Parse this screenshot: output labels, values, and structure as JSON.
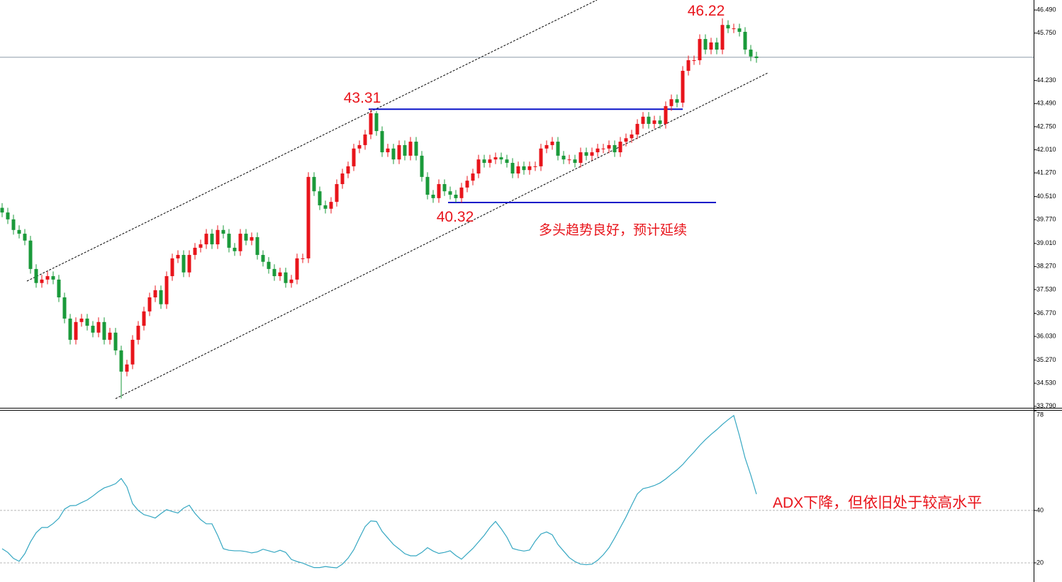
{
  "chart_data": [
    {
      "type": "candlestick",
      "up_color": "#e8141b",
      "down_color": "#1a9a3a",
      "level_color": "#0a14c8",
      "last_price_color": "#8c9aa6",
      "ylim": [
        33.74,
        46.81
      ],
      "yticks": [
        {
          "value": 46.49,
          "label": "46.490"
        },
        {
          "value": 45.75,
          "label": "45.750"
        },
        {
          "value": 44.23,
          "label": "44.230"
        },
        {
          "value": 43.49,
          "label": "43.490"
        },
        {
          "value": 42.75,
          "label": "42.750"
        },
        {
          "value": 42.01,
          "label": "42.010"
        },
        {
          "value": 41.27,
          "label": "41.270"
        },
        {
          "value": 40.51,
          "label": "40.510"
        },
        {
          "value": 39.77,
          "label": "39.770"
        },
        {
          "value": 39.01,
          "label": "39.010"
        },
        {
          "value": 38.27,
          "label": "38.270"
        },
        {
          "value": 37.53,
          "label": "37.530"
        },
        {
          "value": 36.77,
          "label": "36.770"
        },
        {
          "value": 36.03,
          "label": "36.030"
        },
        {
          "value": 35.27,
          "label": "35.270"
        },
        {
          "value": 34.53,
          "label": "34.530"
        },
        {
          "value": 33.79,
          "label": "33.790"
        }
      ],
      "last_price": 44.974,
      "open": [
        40.15,
        40.0,
        39.78,
        39.44,
        39.32,
        39.1,
        38.19,
        37.74,
        37.85,
        37.96,
        37.85,
        37.28,
        36.6,
        35.92,
        36.49,
        36.6,
        36.37,
        36.15,
        36.49,
        35.92,
        36.15,
        35.58,
        34.9,
        35.13,
        35.92,
        36.37,
        36.83,
        37.28,
        37.51,
        37.06,
        37.96,
        38.53,
        38.64,
        38.08,
        38.64,
        38.87,
        38.98,
        39.32,
        38.98,
        39.44,
        39.32,
        38.87,
        38.76,
        39.32,
        39.1,
        39.21,
        38.64,
        38.42,
        38.19,
        37.96,
        38.08,
        37.74,
        37.85,
        38.53,
        38.53,
        41.14,
        40.68,
        40.23,
        40.12,
        40.34,
        40.91,
        41.25,
        41.48,
        42.05,
        42.16,
        42.5,
        43.18,
        42.61,
        41.93,
        42.05,
        41.7,
        42.16,
        41.82,
        42.27,
        41.82,
        41.14,
        40.57,
        40.46,
        40.91,
        40.68,
        40.57,
        40.46,
        40.8,
        41.02,
        41.25,
        41.7,
        41.59,
        41.7,
        41.77,
        41.7,
        41.59,
        41.25,
        41.48,
        41.36,
        41.48,
        41.48,
        42.05,
        42.16,
        42.27,
        41.82,
        41.7,
        41.7,
        41.59,
        41.93,
        41.82,
        41.93,
        42.05,
        42.05,
        42.16,
        41.93,
        42.27,
        42.38,
        42.5,
        42.84,
        43.07,
        42.84,
        42.95,
        42.84,
        43.41,
        43.63,
        43.52,
        44.54,
        44.88,
        44.88,
        45.56,
        45.22,
        45.45,
        45.22,
        46.01,
        45.9,
        45.9,
        45.79,
        45.22,
        45.0
      ],
      "high": [
        40.3,
        40.15,
        39.93,
        39.59,
        39.47,
        39.25,
        38.34,
        38.0,
        38.11,
        38.11,
        38.0,
        37.43,
        36.75,
        36.64,
        36.75,
        36.75,
        36.52,
        36.64,
        36.64,
        36.3,
        36.3,
        35.73,
        35.28,
        36.07,
        36.52,
        36.98,
        37.43,
        37.66,
        37.66,
        38.11,
        38.68,
        38.79,
        38.79,
        38.79,
        39.02,
        39.13,
        39.47,
        39.47,
        39.59,
        39.59,
        39.47,
        39.02,
        39.47,
        39.47,
        39.36,
        39.36,
        38.79,
        38.57,
        38.34,
        38.23,
        38.23,
        38.0,
        38.68,
        38.68,
        41.29,
        41.29,
        40.83,
        40.38,
        40.49,
        41.06,
        41.4,
        41.63,
        42.2,
        42.31,
        42.65,
        43.31,
        43.25,
        42.76,
        42.2,
        42.2,
        42.31,
        42.31,
        42.42,
        42.42,
        41.97,
        41.29,
        40.72,
        41.06,
        41.06,
        40.83,
        40.72,
        40.95,
        41.17,
        41.4,
        41.85,
        41.85,
        41.85,
        41.92,
        41.92,
        41.85,
        41.74,
        41.63,
        41.63,
        41.63,
        41.63,
        42.2,
        42.31,
        42.42,
        42.42,
        41.97,
        41.85,
        41.85,
        42.08,
        42.08,
        42.08,
        42.2,
        42.2,
        42.31,
        42.31,
        42.42,
        42.53,
        42.65,
        42.99,
        43.22,
        43.22,
        43.1,
        43.1,
        43.56,
        43.78,
        43.78,
        44.69,
        45.03,
        45.03,
        45.71,
        45.71,
        45.6,
        45.6,
        46.22,
        46.16,
        46.05,
        46.05,
        45.94,
        45.37,
        45.15
      ],
      "low": [
        39.85,
        39.63,
        39.29,
        39.17,
        38.95,
        38.04,
        37.59,
        37.59,
        37.7,
        37.7,
        37.13,
        36.45,
        35.77,
        35.77,
        36.34,
        36.22,
        36.0,
        36.0,
        35.77,
        35.77,
        35.43,
        34.04,
        34.75,
        34.98,
        35.77,
        36.22,
        36.68,
        37.13,
        36.91,
        36.91,
        37.81,
        38.38,
        37.93,
        37.93,
        38.49,
        38.72,
        38.83,
        38.83,
        38.83,
        39.17,
        38.72,
        38.61,
        38.61,
        38.95,
        38.95,
        38.49,
        38.27,
        38.04,
        37.81,
        37.81,
        37.59,
        37.59,
        37.7,
        38.38,
        38.38,
        40.53,
        40.08,
        39.97,
        39.97,
        40.19,
        40.76,
        41.1,
        41.33,
        41.9,
        42.01,
        42.35,
        42.46,
        41.78,
        41.78,
        41.55,
        41.55,
        41.67,
        41.67,
        41.67,
        40.99,
        40.42,
        40.31,
        40.31,
        40.53,
        40.42,
        40.32,
        40.31,
        40.65,
        40.87,
        41.1,
        41.44,
        41.44,
        41.55,
        41.55,
        41.44,
        41.1,
        41.1,
        41.21,
        41.21,
        41.33,
        41.33,
        41.9,
        42.01,
        41.67,
        41.55,
        41.55,
        41.44,
        41.44,
        41.67,
        41.67,
        41.78,
        41.9,
        41.9,
        41.78,
        41.78,
        42.12,
        42.23,
        42.35,
        42.69,
        42.69,
        42.69,
        42.69,
        42.69,
        43.26,
        43.37,
        43.37,
        44.39,
        44.73,
        44.73,
        45.07,
        45.07,
        45.07,
        45.07,
        45.75,
        45.75,
        45.64,
        45.07,
        44.85,
        44.8
      ],
      "close": [
        40.0,
        39.78,
        39.44,
        39.32,
        39.1,
        38.19,
        37.74,
        37.85,
        37.96,
        37.85,
        37.28,
        36.6,
        35.92,
        36.49,
        36.6,
        36.37,
        36.15,
        36.49,
        35.92,
        36.15,
        35.58,
        34.9,
        35.13,
        35.92,
        36.37,
        36.83,
        37.28,
        37.51,
        37.06,
        37.96,
        38.53,
        38.64,
        38.08,
        38.64,
        38.87,
        38.98,
        39.32,
        38.98,
        39.44,
        39.32,
        38.87,
        38.76,
        39.32,
        39.1,
        39.21,
        38.64,
        38.42,
        38.19,
        37.96,
        38.08,
        37.74,
        37.85,
        38.53,
        38.53,
        41.14,
        40.68,
        40.23,
        40.12,
        40.34,
        40.91,
        41.25,
        41.48,
        42.05,
        42.16,
        42.5,
        43.18,
        42.61,
        41.93,
        42.05,
        41.7,
        42.16,
        41.82,
        42.27,
        41.82,
        41.14,
        40.57,
        40.46,
        40.91,
        40.68,
        40.57,
        40.46,
        40.8,
        41.02,
        41.25,
        41.7,
        41.59,
        41.7,
        41.77,
        41.7,
        41.59,
        41.25,
        41.48,
        41.36,
        41.48,
        41.48,
        42.05,
        42.16,
        42.27,
        41.82,
        41.7,
        41.7,
        41.59,
        41.93,
        41.82,
        41.93,
        42.05,
        42.05,
        42.16,
        41.93,
        42.27,
        42.38,
        42.5,
        42.84,
        43.07,
        42.84,
        42.95,
        42.84,
        43.41,
        43.63,
        43.52,
        44.54,
        44.88,
        44.88,
        45.56,
        45.22,
        45.45,
        45.22,
        46.01,
        45.9,
        45.9,
        45.79,
        45.22,
        45.0,
        44.95
      ],
      "annotations": [
        "多头趋势良好，预计延续"
      ]
    },
    {
      "type": "line",
      "color": "#35a7c2",
      "ylim": [
        12.7,
        78.6
      ],
      "yticks": [
        78,
        40,
        20
      ],
      "gridlines": [
        40,
        20
      ],
      "values": [
        25.4,
        24.0,
        21.7,
        20.6,
        23.5,
        28.0,
        31.5,
        33.5,
        33.5,
        35.0,
        37.0,
        40.5,
        41.8,
        41.9,
        43.0,
        44.0,
        45.5,
        47.2,
        48.6,
        49.3,
        50.2,
        52.2,
        49.0,
        42.6,
        40.0,
        38.4,
        37.8,
        37.1,
        38.8,
        40.3,
        39.6,
        39.0,
        40.9,
        42.0,
        38.9,
        36.5,
        34.9,
        34.9,
        30.5,
        25.4,
        24.8,
        24.6,
        24.6,
        24.3,
        23.8,
        24.2,
        25.2,
        24.6,
        24.0,
        24.8,
        24.0,
        21.3,
        20.5,
        19.9,
        19.0,
        18.2,
        18.2,
        18.6,
        18.3,
        18.1,
        19.5,
        21.8,
        25.0,
        29.5,
        33.8,
        36.0,
        35.8,
        32.0,
        29.5,
        27.0,
        25.3,
        23.5,
        22.7,
        22.7,
        24.0,
        25.8,
        24.5,
        23.6,
        24.0,
        24.6,
        22.8,
        21.4,
        23.5,
        25.5,
        28.0,
        30.5,
        33.5,
        35.8,
        33.0,
        29.8,
        25.5,
        24.9,
        24.5,
        24.9,
        28.3,
        31.0,
        31.8,
        30.7,
        27.0,
        24.5,
        22.0,
        20.5,
        19.5,
        19.3,
        19.5,
        21.0,
        23.1,
        25.8,
        29.5,
        33.5,
        37.5,
        42.0,
        46.3,
        48.3,
        48.8,
        49.5,
        50.5,
        52.0,
        53.8,
        55.5,
        57.5,
        60.0,
        62.3,
        64.8,
        67.0,
        69.0,
        70.8,
        72.8,
        74.6,
        76.2,
        68.5,
        60.0,
        53.5,
        46.2
      ],
      "annotations": [
        "ADX下降，但依旧处于较高水平"
      ]
    }
  ]
}
